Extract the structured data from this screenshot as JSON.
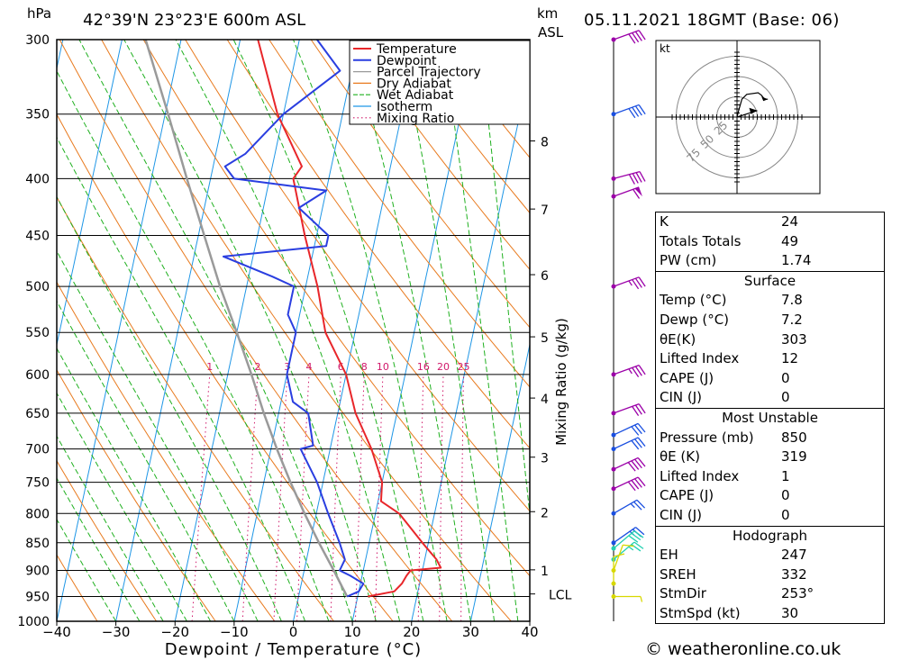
{
  "header": {
    "hpa_label": "hPa",
    "location": "42°39'N  23°23'E  600m  ASL",
    "km_label": "km",
    "asl_label": "ASL",
    "datetime": "05.11.2021  18GMT  (Base: 06)"
  },
  "footer": "© weatheronline.co.uk",
  "chart_data": {
    "type": "skew-t",
    "xlabel": "Dewpoint / Temperature (°C)",
    "ylabel_right": "Mixing Ratio (g/kg)",
    "x_ticks": [
      -40,
      -30,
      -20,
      -10,
      0,
      10,
      20,
      30,
      40
    ],
    "pressure_levels": [
      300,
      350,
      400,
      450,
      500,
      550,
      600,
      650,
      700,
      750,
      800,
      850,
      900,
      950,
      1000
    ],
    "km_ticks": [
      {
        "label": "8",
        "p": 370
      },
      {
        "label": "7",
        "p": 426
      },
      {
        "label": "6",
        "p": 488
      },
      {
        "label": "5",
        "p": 555
      },
      {
        "label": "4",
        "p": 630
      },
      {
        "label": "3",
        "p": 712
      },
      {
        "label": "2",
        "p": 797
      },
      {
        "label": "1",
        "p": 899
      },
      {
        "label": "LCL",
        "p": 945
      }
    ],
    "mixing_ratio_labels": [
      "1",
      "2",
      "3",
      "4",
      "6",
      "8",
      "10",
      "16",
      "20",
      "25"
    ],
    "legend": [
      {
        "name": "Temperature",
        "color": "#e8262a"
      },
      {
        "name": "Dewpoint",
        "color": "#2a3ee0"
      },
      {
        "name": "Parcel Trajectory",
        "color": "#9a9a9a"
      },
      {
        "name": "Dry Adiabat",
        "color": "#e87a1e"
      },
      {
        "name": "Wet Adiabat",
        "color": "#1fb01f"
      },
      {
        "name": "Isotherm",
        "color": "#1e96e6"
      },
      {
        "name": "Mixing Ratio",
        "color": "#d0186a"
      }
    ],
    "temperature": [
      [
        950,
        11.7
      ],
      [
        940,
        16
      ],
      [
        925,
        17
      ],
      [
        910,
        17.5
      ],
      [
        900,
        18
      ],
      [
        895,
        23
      ],
      [
        880,
        22
      ],
      [
        850,
        19
      ],
      [
        800,
        14
      ],
      [
        780,
        10.5
      ],
      [
        750,
        10
      ],
      [
        700,
        7
      ],
      [
        650,
        3
      ],
      [
        600,
        0
      ],
      [
        550,
        -5
      ],
      [
        500,
        -8
      ],
      [
        450,
        -12
      ],
      [
        400,
        -16
      ],
      [
        390,
        -15
      ],
      [
        350,
        -21
      ],
      [
        300,
        -27
      ]
    ],
    "dewpoint": [
      [
        950,
        8.2
      ],
      [
        940,
        10
      ],
      [
        925,
        10.5
      ],
      [
        910,
        8
      ],
      [
        900,
        6
      ],
      [
        880,
        6.5
      ],
      [
        850,
        5
      ],
      [
        800,
        2
      ],
      [
        750,
        -1
      ],
      [
        700,
        -5
      ],
      [
        695,
        -3
      ],
      [
        650,
        -5
      ],
      [
        635,
        -8
      ],
      [
        600,
        -10
      ],
      [
        580,
        -10
      ],
      [
        550,
        -10
      ],
      [
        530,
        -12
      ],
      [
        500,
        -12
      ],
      [
        490,
        -16
      ],
      [
        470,
        -25
      ],
      [
        460,
        -8
      ],
      [
        450,
        -8
      ],
      [
        425,
        -14
      ],
      [
        410,
        -10
      ],
      [
        400,
        -26
      ],
      [
        390,
        -28
      ],
      [
        380,
        -25
      ],
      [
        350,
        -20
      ],
      [
        320,
        -12
      ],
      [
        300,
        -17
      ]
    ],
    "parcel": [
      [
        950,
        8.2
      ],
      [
        900,
        5
      ],
      [
        850,
        1.5
      ],
      [
        800,
        -2
      ],
      [
        750,
        -5.5
      ],
      [
        700,
        -9
      ],
      [
        650,
        -12.5
      ],
      [
        600,
        -16
      ],
      [
        550,
        -20
      ],
      [
        500,
        -24.5
      ],
      [
        450,
        -29
      ],
      [
        400,
        -34
      ],
      [
        350,
        -39.5
      ],
      [
        300,
        -46
      ]
    ],
    "winds": [
      {
        "p": 300,
        "dir": 250,
        "spd": 40,
        "color": "#9b00a8"
      },
      {
        "p": 350,
        "dir": 250,
        "spd": 40,
        "color": "#1a4fe0"
      },
      {
        "p": 400,
        "dir": 255,
        "spd": 40,
        "color": "#9b00a8"
      },
      {
        "p": 415,
        "dir": 250,
        "spd": 60,
        "color": "#9b00a8"
      },
      {
        "p": 500,
        "dir": 250,
        "spd": 35,
        "color": "#9b00a8"
      },
      {
        "p": 600,
        "dir": 250,
        "spd": 35,
        "color": "#9b00a8"
      },
      {
        "p": 650,
        "dir": 250,
        "spd": 30,
        "color": "#9b00a8"
      },
      {
        "p": 680,
        "dir": 245,
        "spd": 30,
        "color": "#1a4fe0"
      },
      {
        "p": 700,
        "dir": 245,
        "spd": 30,
        "color": "#1a4fe0"
      },
      {
        "p": 730,
        "dir": 245,
        "spd": 40,
        "color": "#9b00a8"
      },
      {
        "p": 760,
        "dir": 245,
        "spd": 40,
        "color": "#9b00a8"
      },
      {
        "p": 800,
        "dir": 240,
        "spd": 25,
        "color": "#1a4fe0"
      },
      {
        "p": 850,
        "dir": 235,
        "spd": 25,
        "color": "#1a4fe0"
      },
      {
        "p": 860,
        "dir": 230,
        "spd": 30,
        "color": "#22d0b0"
      },
      {
        "p": 880,
        "dir": 230,
        "spd": 25,
        "color": "#22d0b0"
      },
      {
        "p": 900,
        "dir": 200,
        "spd": 10,
        "color": "#d8d800"
      },
      {
        "p": 925,
        "dir": 180,
        "spd": 10,
        "color": "#d8d800"
      },
      {
        "p": 950,
        "dir": 270,
        "spd": 5,
        "color": "#d8d800"
      }
    ],
    "hodograph": {
      "unit_label": "kt",
      "ring_labels": [
        "25",
        "50",
        "75"
      ],
      "points": [
        [
          0,
          0
        ],
        [
          2,
          8
        ],
        [
          6,
          22
        ],
        [
          12,
          28
        ],
        [
          26,
          30
        ],
        [
          30,
          27
        ],
        [
          34,
          22
        ],
        [
          38,
          22
        ]
      ],
      "storm_motion": [
        25,
        8
      ]
    }
  },
  "indices": {
    "basic": [
      {
        "label": "K",
        "value": "24"
      },
      {
        "label": "Totals Totals",
        "value": "49"
      },
      {
        "label": "PW (cm)",
        "value": "1.74"
      }
    ],
    "surface_title": "Surface",
    "surface": [
      {
        "label": "Temp (°C)",
        "value": "7.8"
      },
      {
        "label": "Dewp (°C)",
        "value": "7.2"
      },
      {
        "label": "θE(K)",
        "value": "303"
      },
      {
        "label": "Lifted Index",
        "value": "12"
      },
      {
        "label": "CAPE (J)",
        "value": "0"
      },
      {
        "label": "CIN (J)",
        "value": "0"
      }
    ],
    "mu_title": "Most Unstable",
    "mu": [
      {
        "label": "Pressure (mb)",
        "value": "850"
      },
      {
        "label": "θE (K)",
        "value": "319"
      },
      {
        "label": "Lifted Index",
        "value": "1"
      },
      {
        "label": "CAPE (J)",
        "value": "0"
      },
      {
        "label": "CIN (J)",
        "value": "0"
      }
    ],
    "hodo_title": "Hodograph",
    "hodo": [
      {
        "label": "EH",
        "value": "247"
      },
      {
        "label": "SREH",
        "value": "332"
      },
      {
        "label": "StmDir",
        "value": "253°"
      },
      {
        "label": "StmSpd (kt)",
        "value": "30"
      }
    ]
  }
}
